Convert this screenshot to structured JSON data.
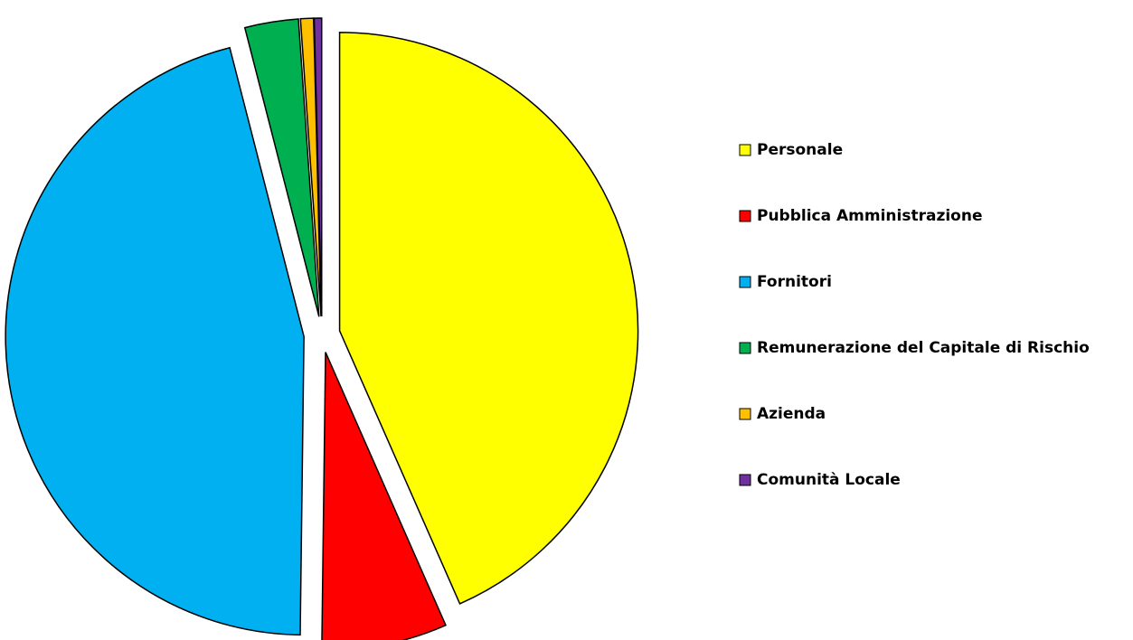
{
  "chart_data": {
    "type": "pie",
    "categories": [
      "Personale",
      "Pubblica Amministrazione",
      "Fornitori",
      "Remunerazione del Capitale di Rischio",
      "Azienda",
      "Comunità Locale"
    ],
    "values": [
      43.4,
      6.8,
      45.8,
      2.9,
      0.7,
      0.4
    ],
    "colors": [
      "#ffff00",
      "#ff0000",
      "#00b0f0",
      "#00b050",
      "#ffc000",
      "#7030a0"
    ],
    "legend": "right"
  }
}
